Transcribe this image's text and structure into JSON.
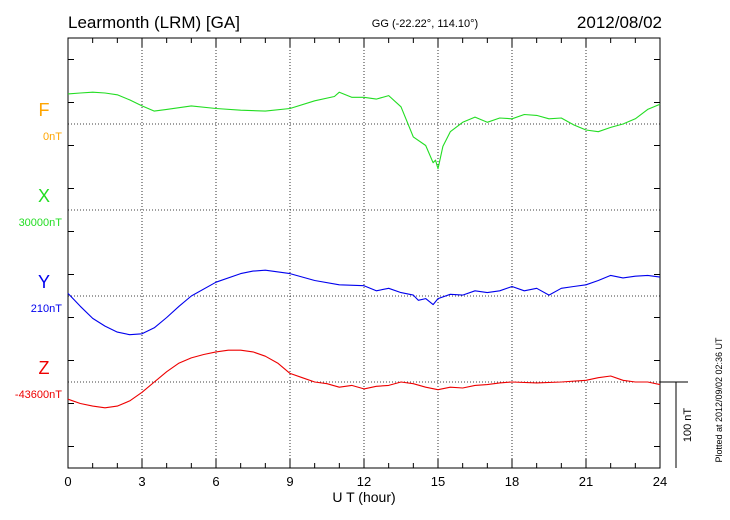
{
  "header": {
    "station": "Learmonth (LRM)  [GA]",
    "coords": "GG (-22.22°, 114.10°)",
    "date": "2012/08/02"
  },
  "side_note": "Plotted at 2012/09/02 02:36 UT",
  "chart_data": {
    "type": "line",
    "title": "Learmonth (LRM)  [GA]",
    "xlabel": "U T (hour)",
    "xlim": [
      0,
      24
    ],
    "xticks": [
      "0",
      "3",
      "6",
      "9",
      "12",
      "15",
      "18",
      "21",
      "24"
    ],
    "grid": true,
    "scale_bar": {
      "label": "100 nT",
      "value_nT": 100
    },
    "series": [
      {
        "name": "F",
        "baseline": "0nT",
        "color": "#ffa500",
        "x": [],
        "y": []
      },
      {
        "name": "X",
        "baseline": "30000nT",
        "color": "#22dd22",
        "x": [
          0,
          0.5,
          1,
          1.5,
          2,
          2.5,
          3,
          3.5,
          4,
          5,
          6,
          7,
          8,
          9,
          10,
          10.8,
          11,
          11.5,
          12,
          12.5,
          13,
          13.5,
          14,
          14.5,
          14.8,
          14.9,
          15,
          15.2,
          15.5,
          16,
          16.5,
          17,
          17.5,
          18,
          18.5,
          19,
          19.5,
          20,
          20.5,
          21,
          21.5,
          22,
          22.5,
          23,
          23.5,
          24
        ],
        "y": [
          135,
          136,
          137,
          136,
          134,
          128,
          121,
          115,
          117,
          121,
          118,
          116,
          115,
          118,
          127,
          132,
          137,
          131,
          131,
          129,
          133,
          120,
          85,
          75,
          55,
          58,
          48,
          74,
          91,
          102,
          108,
          102,
          107,
          106,
          111,
          110,
          106,
          107,
          99,
          93,
          91,
          96,
          100,
          106,
          117,
          123
        ]
      },
      {
        "name": "Y",
        "baseline": "210nT",
        "color": "#0000ee",
        "x": [
          0,
          0.5,
          1,
          1.5,
          2,
          2.5,
          3,
          3.5,
          4,
          4.5,
          5,
          6,
          7,
          7.5,
          8,
          9,
          10,
          11,
          12,
          12.5,
          13,
          13.5,
          14,
          14.2,
          14.5,
          14.8,
          15,
          15.5,
          16,
          16.5,
          17,
          17.5,
          18,
          18.5,
          19,
          19.5,
          20,
          20.5,
          21,
          21.5,
          22,
          22.5,
          23,
          23.5,
          24
        ],
        "y": [
          3,
          -12,
          -26,
          -35,
          -42,
          -45,
          -44,
          -37,
          -25,
          -12,
          0,
          16,
          26,
          29,
          30,
          26,
          18,
          13,
          12,
          6,
          9,
          4,
          1,
          -5,
          -3,
          -10,
          -3,
          2,
          1,
          6,
          4,
          6,
          11,
          6,
          9,
          1,
          9,
          11,
          13,
          18,
          24,
          21,
          23,
          24,
          22
        ]
      },
      {
        "name": "Z",
        "baseline": "-43600nT",
        "color": "#ee0000",
        "x": [
          0,
          0.5,
          1,
          1.5,
          2,
          2.5,
          3,
          3.5,
          4,
          4.5,
          5,
          5.5,
          6,
          6.5,
          7,
          7.5,
          8,
          8.5,
          9,
          9.5,
          10,
          10.5,
          11,
          11.5,
          12,
          12.5,
          13,
          13.5,
          14,
          14.5,
          15,
          15.5,
          16,
          16.5,
          17,
          17.5,
          18,
          19,
          20,
          21,
          21.5,
          22,
          22.5,
          23,
          23.5,
          24
        ],
        "y": [
          -20,
          -25,
          -28,
          -30,
          -28,
          -22,
          -12,
          0,
          12,
          22,
          28,
          32,
          35,
          37,
          37,
          35,
          30,
          22,
          10,
          5,
          0,
          -2,
          -6,
          -4,
          -8,
          -5,
          -4,
          0,
          -2,
          -6,
          -9,
          -6,
          -7,
          -4,
          -3,
          -1,
          0,
          -1,
          0,
          2,
          5,
          7,
          2,
          0,
          0,
          -3
        ]
      }
    ]
  }
}
